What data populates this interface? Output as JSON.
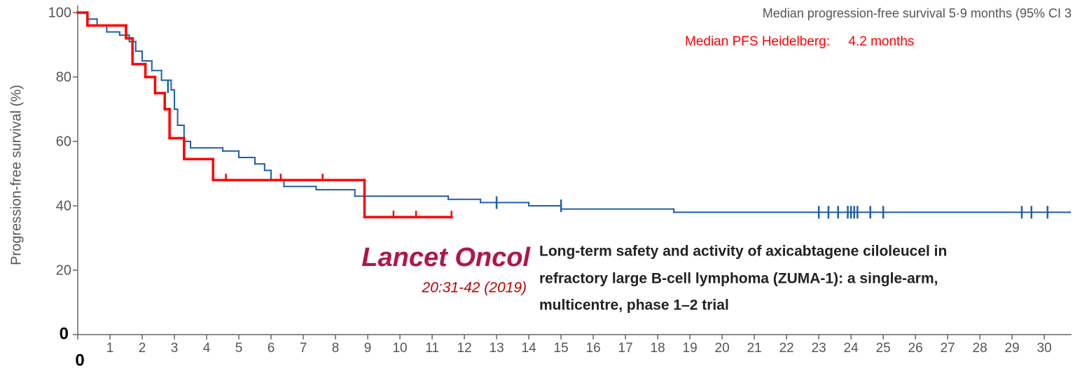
{
  "chart_data": {
    "type": "step",
    "ylabel": "Progression-free survival (%)",
    "xlim": [
      0,
      30.8
    ],
    "ylim": [
      0,
      100
    ],
    "xticks": [
      0,
      1,
      2,
      3,
      4,
      5,
      6,
      7,
      8,
      9,
      10,
      11,
      12,
      13,
      14,
      15,
      16,
      17,
      18,
      19,
      20,
      21,
      22,
      23,
      24,
      25,
      26,
      27,
      28,
      29,
      30
    ],
    "yticks": [
      0,
      20,
      40,
      60,
      80,
      100
    ],
    "annotations": {
      "zuma_median": "Median progression-free survival 5·9 months (95% CI 3",
      "heidelberg_median": "Median PFS Heidelberg:     4.2 months",
      "journal": "Lancet Oncol",
      "citation": "20:31-42 (2019)",
      "paper_title": [
        "Long-term safety and activity of axicabtagene ciloleucel in",
        "refractory large B-cell lymphoma (ZUMA-1): a single-arm,",
        "multicentre, phase 1–2 trial"
      ]
    },
    "series": [
      {
        "color": "#1f5fa8",
        "x": [
          0,
          0.3,
          0.6,
          0.9,
          1.3,
          1.6,
          1.8,
          2.0,
          2.3,
          2.6,
          2.9,
          3.0,
          3.1,
          3.3,
          3.5,
          4.5,
          5.0,
          5.5,
          5.8,
          6.0,
          6.4,
          7.4,
          8.6,
          11.5,
          12.5,
          14.0,
          15.0,
          18.5,
          30.8
        ],
        "values": [
          100,
          98,
          96,
          94,
          93,
          91,
          88,
          85,
          82,
          79,
          76,
          70,
          65,
          60,
          58,
          57,
          55,
          53,
          51,
          48,
          46,
          45,
          43,
          42,
          41,
          40,
          39,
          38,
          38
        ],
        "censored_x": [
          2.8,
          13,
          15,
          23,
          23.3,
          23.6,
          23.9,
          24.0,
          24.1,
          24.2,
          24.6,
          25,
          29.3,
          29.6,
          30.1
        ],
        "censored_values": [
          77,
          41,
          40,
          38,
          38,
          38,
          38,
          38,
          38,
          38,
          38,
          38,
          38,
          38,
          38
        ]
      },
      {
        "color": "#ff0000",
        "x": [
          0,
          0.3,
          1.5,
          1.7,
          2.1,
          2.4,
          2.7,
          2.85,
          3.3,
          4.2,
          8.9,
          11.6
        ],
        "values": [
          100,
          96,
          92,
          84,
          80,
          75,
          70,
          61,
          54.5,
          48,
          36.5,
          36.5
        ],
        "censored_x": [
          4.6,
          6.3,
          7.6,
          9.8,
          10.5,
          11.6
        ],
        "censored_values": [
          48,
          48,
          48,
          36.5,
          36.5,
          36.5
        ]
      }
    ]
  }
}
